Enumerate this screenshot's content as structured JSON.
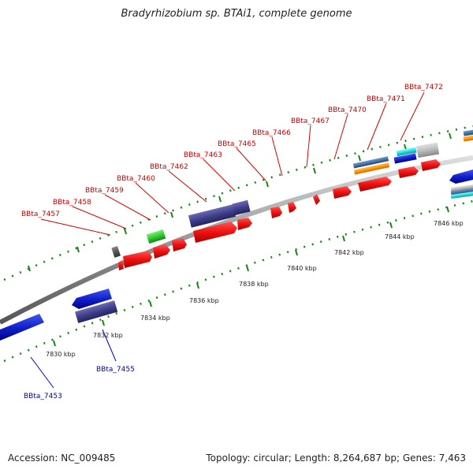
{
  "title": "Bradyrhizobium sp. BTAi1, complete genome",
  "accession": "Accession: NC_009485",
  "summary": "Topology: circular; Length: 8,264,687 bp; Genes: 7,463",
  "colors": {
    "red": "#ee1111",
    "dark_blue": "#3f3f8c",
    "blue": "#1122cc",
    "green": "#33cc33",
    "grey": "#bbbbbb",
    "cyan": "#22dddd",
    "orange": "#ff9900",
    "steel": "#4477aa",
    "tick": "#118811",
    "backbone": "#999999"
  },
  "kbp_labels": [
    "7830 kbp",
    "7832 kbp",
    "7834 kbp",
    "7836 kbp",
    "7838 kbp",
    "7840 kbp",
    "7842 kbp",
    "7844 kbp",
    "7846 kbp"
  ],
  "top_gene_labels": [
    "BBta_7457",
    "BBta_7458",
    "BBta_7459",
    "BBta_7460",
    "BBta_7462",
    "BBta_7463",
    "BBta_7465",
    "BBta_7466",
    "BBta_7467",
    "BBta_7470",
    "BBta_7471",
    "BBta_7472"
  ],
  "bottom_gene_labels": [
    "BBta_7453",
    "BBta_7455"
  ]
}
